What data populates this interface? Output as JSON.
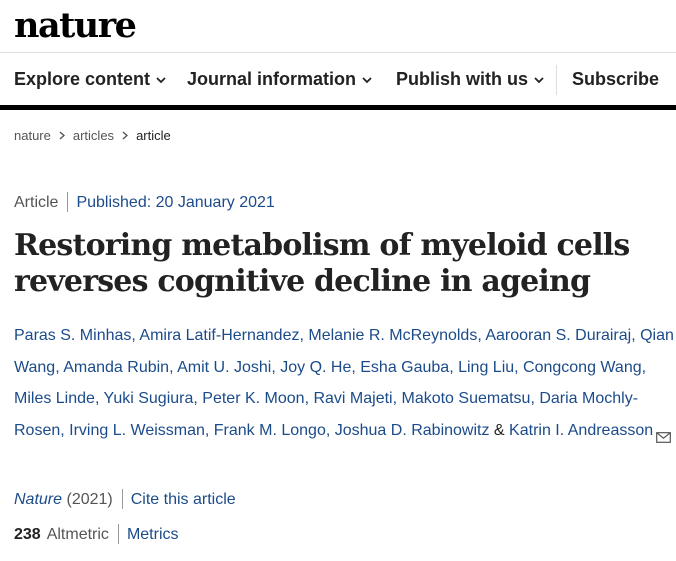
{
  "header": {
    "logo": "nature"
  },
  "nav": {
    "explore": "Explore content",
    "journal": "Journal information",
    "publish": "Publish with us",
    "subscribe": "Subscribe"
  },
  "breadcrumb": {
    "home": "nature",
    "section": "articles",
    "current": "article"
  },
  "article": {
    "type": "Article",
    "published": "Published: 20 January 2021",
    "title": "Restoring metabolism of myeloid cells reverses cognitive decline in ageing",
    "authors": [
      "Paras S. Minhas",
      "Amira Latif-Hernandez",
      "Melanie R. McReynolds",
      "Aarooran S. Durairaj",
      "Qian Wang",
      "Amanda Rubin",
      "Amit U. Joshi",
      "Joy Q. He",
      "Esha Gauba",
      "Ling Liu",
      "Congcong Wang",
      "Miles Linde",
      "Yuki Sugiura",
      "Peter K. Moon",
      "Ravi Majeti",
      "Makoto Suematsu",
      "Daria Mochly-Rosen",
      "Irving L. Weissman",
      "Frank M. Longo",
      "Joshua D. Rabinowitz",
      "Katrin I. Andreasson"
    ],
    "journal": "Nature",
    "year": "(2021)",
    "cite": "Cite this article",
    "altmetric_count": "238",
    "altmetric_label": "Altmetric",
    "metrics": "Metrics"
  },
  "icons": {
    "chevron": "chevron-down-icon",
    "breadcrumb_sep": "chevron-right-icon",
    "mail": "mail-icon"
  },
  "colors": {
    "link": "#1c4b8a",
    "text": "#222222",
    "muted": "#555555",
    "nav_bar": "#000000"
  }
}
